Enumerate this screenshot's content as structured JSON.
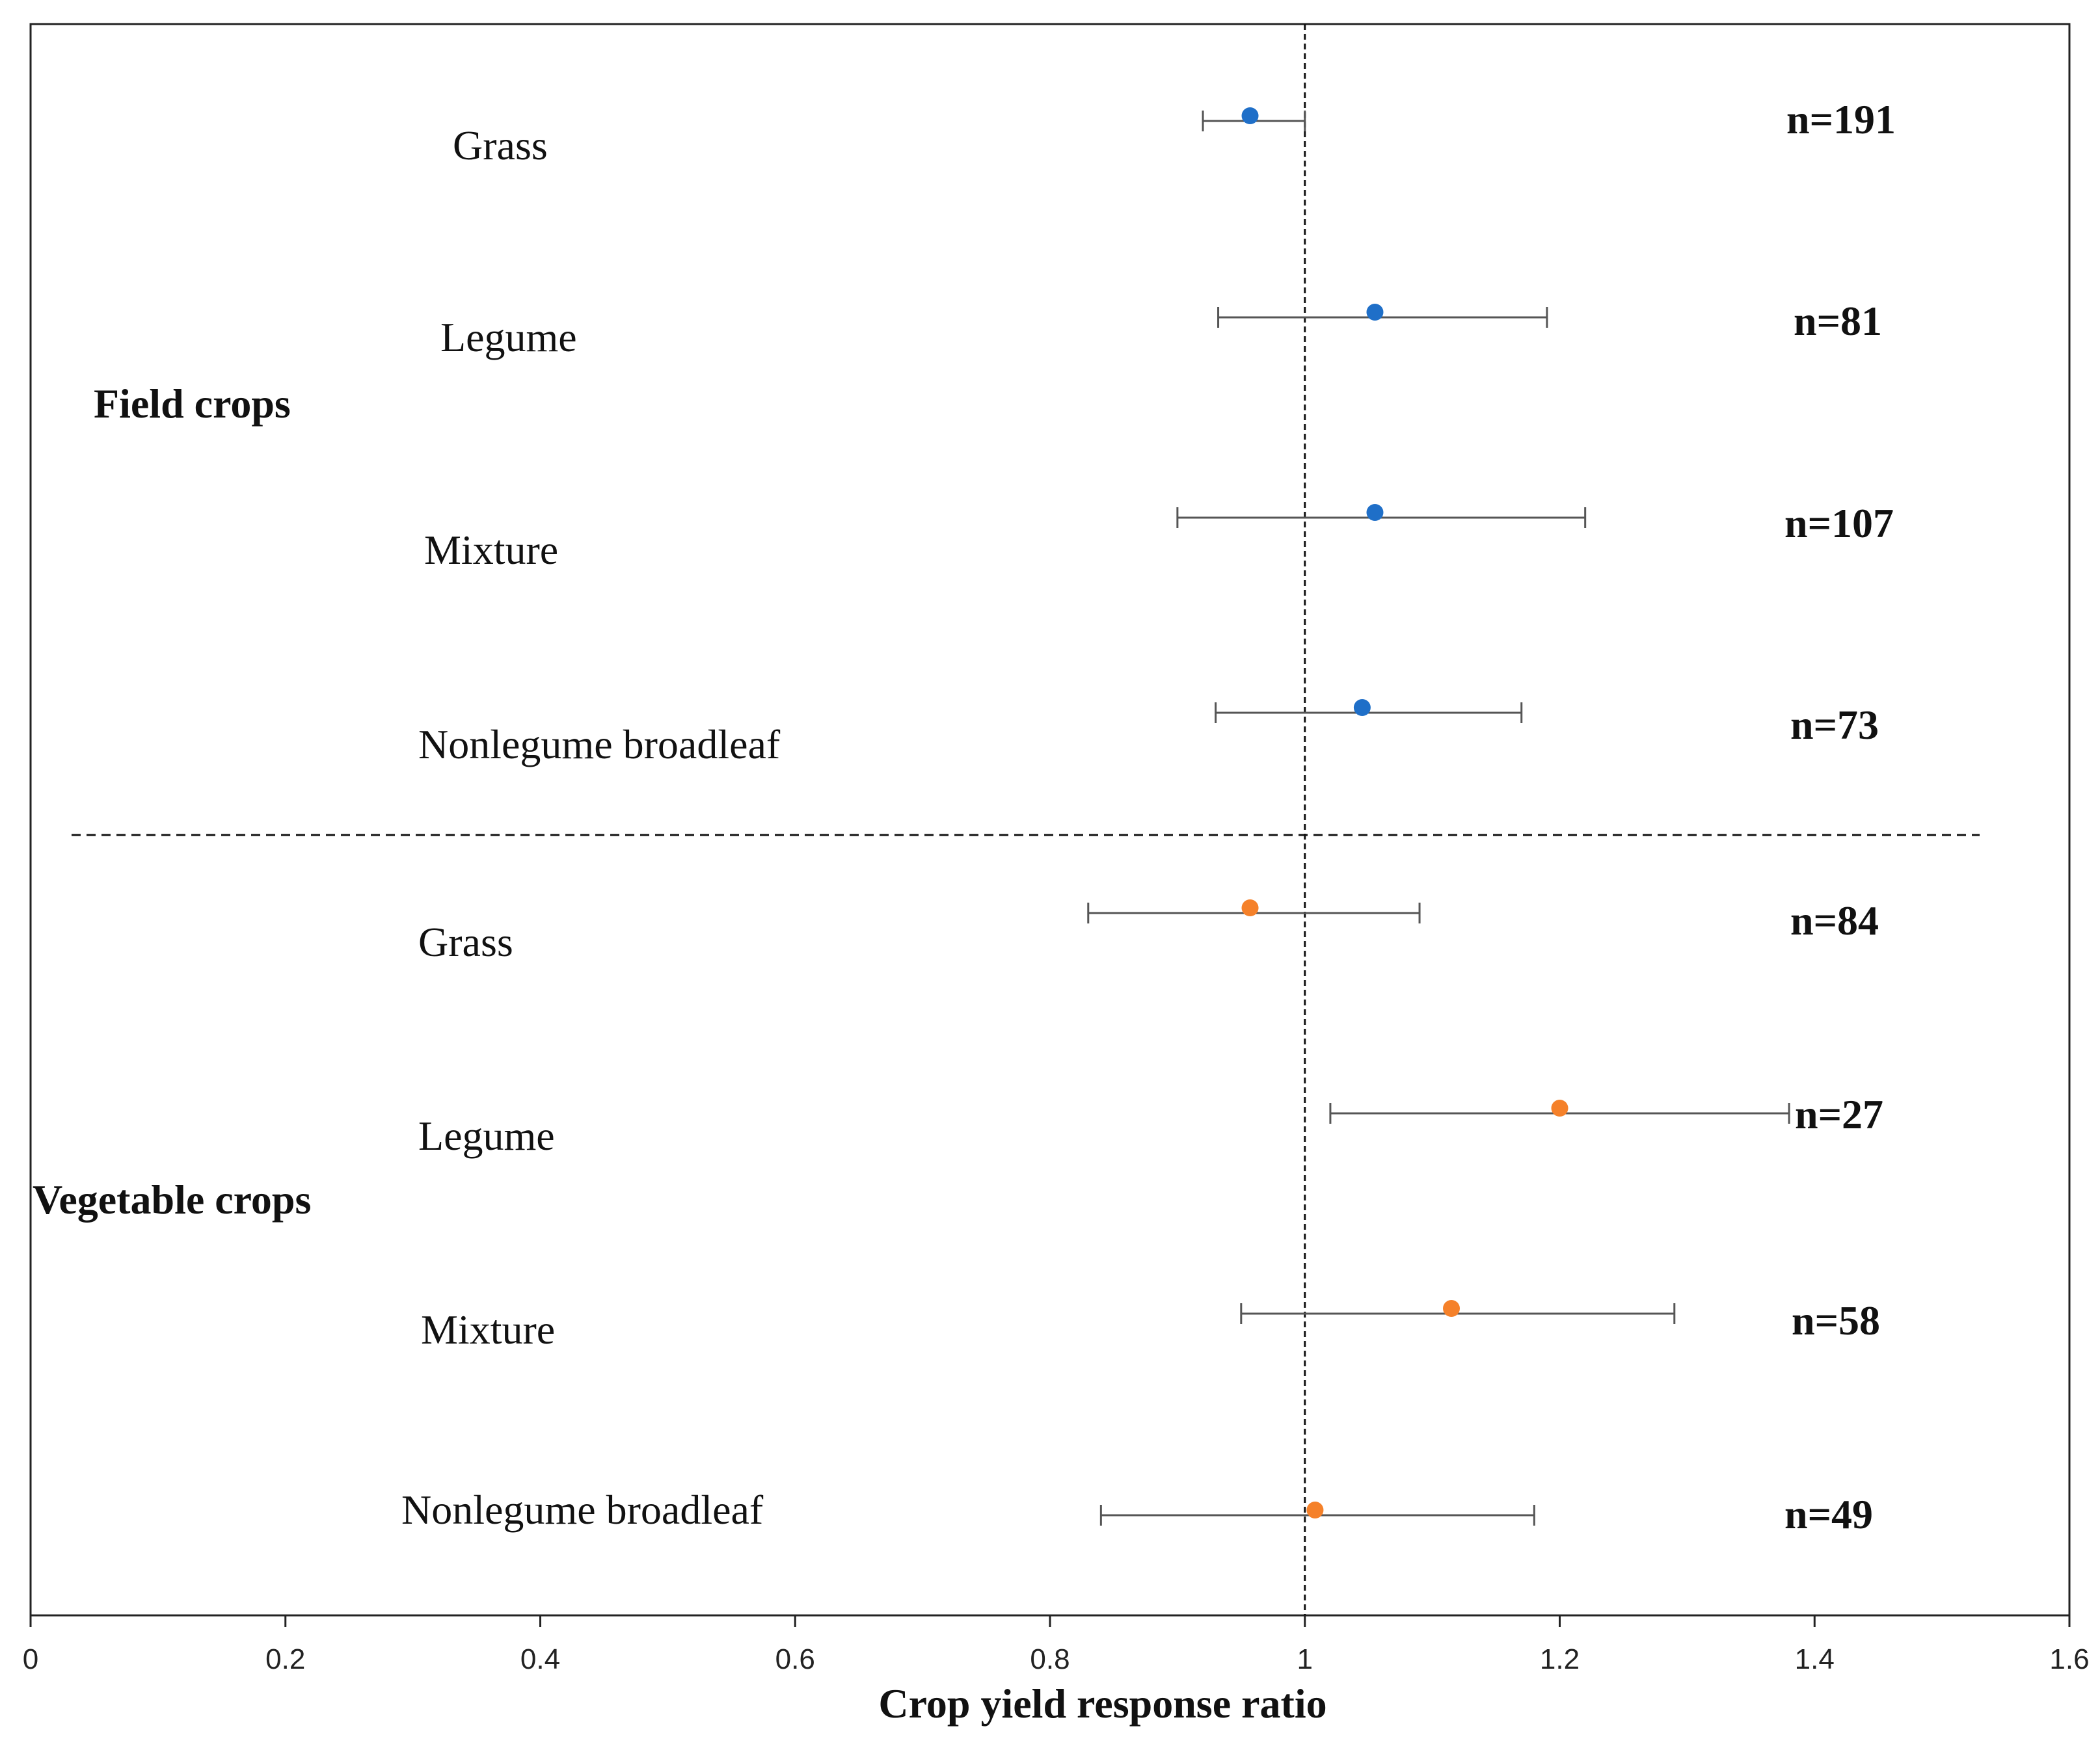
{
  "chart_data": {
    "type": "forest",
    "title": "",
    "xlabel": "Crop yield response ratio",
    "ylabel": "",
    "xlim": [
      0,
      1.6
    ],
    "x_ticks": [
      0,
      0.2,
      0.4,
      0.6,
      0.8,
      1,
      1.2,
      1.4,
      1.6
    ],
    "x_tick_labels": [
      "0",
      "0.2",
      "0.4",
      "0.6",
      "0.8",
      "1",
      "1.2",
      "1.4",
      "1.6"
    ],
    "reference_line": 1,
    "groups": [
      {
        "name": "Field crops",
        "color": "#1f6fc8",
        "items": [
          {
            "label": "Grass",
            "value": 0.957,
            "lower": 0.92,
            "upper": 1.0,
            "n_label": "n=191"
          },
          {
            "label": "Legume",
            "value": 1.055,
            "lower": 0.932,
            "upper": 1.19,
            "n_label": "n=81"
          },
          {
            "label": "Mixture",
            "value": 1.055,
            "lower": 0.9,
            "upper": 1.22,
            "n_label": "n=107"
          },
          {
            "label": "Nonlegume broadleaf",
            "value": 1.045,
            "lower": 0.93,
            "upper": 1.17,
            "n_label": "n=73"
          }
        ]
      },
      {
        "name": "Vegetable crops",
        "color": "#f5812a",
        "items": [
          {
            "label": "Grass",
            "value": 0.957,
            "lower": 0.83,
            "upper": 1.09,
            "n_label": "n=84"
          },
          {
            "label": "Legume",
            "value": 1.2,
            "lower": 1.02,
            "upper": 1.38,
            "n_label": "n=27"
          },
          {
            "label": "Mixture",
            "value": 1.115,
            "lower": 0.95,
            "upper": 1.29,
            "n_label": "n=58"
          },
          {
            "label": "Nonlegume broadleaf",
            "value": 1.008,
            "lower": 0.84,
            "upper": 1.18,
            "n_label": "n=49"
          }
        ]
      }
    ]
  }
}
